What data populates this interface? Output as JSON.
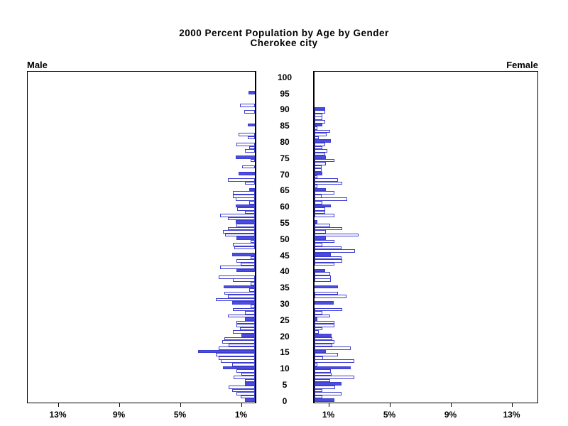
{
  "title": {
    "line1": "2000 Percent Population by Age by Gender",
    "line2": "Cherokee city"
  },
  "panels": {
    "left_label": "Male",
    "right_label": "Female"
  },
  "colors": {
    "bar_fill": "#4b4ce0",
    "bar_outline": "#3d3ecf",
    "bar_empty_fill": "#ffffff",
    "axis": "#000000",
    "background": "#ffffff"
  },
  "chart_data": {
    "type": "bar",
    "variant": "population-pyramid",
    "title": "2000 Percent Population by Age by Gender",
    "subtitle": "Cherokee city",
    "xlabel_unit": "%",
    "age_min": 0,
    "age_max": 100,
    "age_tick_step": 5,
    "age_tick_labels": [
      "0",
      "5",
      "10",
      "15",
      "20",
      "25",
      "30",
      "35",
      "40",
      "45",
      "50",
      "55",
      "60",
      "65",
      "70",
      "75",
      "80",
      "85",
      "90",
      "95",
      "100"
    ],
    "x_tick_values": [
      1,
      5,
      9,
      13
    ],
    "x_tick_labels_male": [
      "13%",
      "9%",
      "5%",
      "1%"
    ],
    "x_tick_labels_female": [
      "1%",
      "5%",
      "9%",
      "13%"
    ],
    "xlim": [
      0,
      15
    ],
    "highlight_every": 5,
    "grid": false,
    "series": [
      {
        "name": "Male",
        "values": [
          0.65,
          0.95,
          1.2,
          1.5,
          1.7,
          0.65,
          0.65,
          1.4,
          0.9,
          1.2,
          2.1,
          1.5,
          2.25,
          2.35,
          2.55,
          3.7,
          2.35,
          1.7,
          2.15,
          2.0,
          0.9,
          1.45,
          1.0,
          1.2,
          1.2,
          0.65,
          1.77,
          0.65,
          1.45,
          0.3,
          1.5,
          2.55,
          1.75,
          2.0,
          0.35,
          2.05,
          0.3,
          1.45,
          2.35,
          0,
          1.2,
          2.3,
          0.95,
          1.2,
          0.3,
          1.5,
          0,
          1.35,
          1.45,
          0.3,
          1.2,
          1.95,
          2.1,
          1.75,
          1.2,
          1.25,
          1.75,
          2.3,
          0.65,
          1.15,
          1.25,
          0.35,
          1.25,
          1.45,
          1.45,
          0.35,
          0,
          0.65,
          1.75,
          0,
          1.05,
          0,
          0.85,
          0,
          0.3,
          1.25,
          0,
          0.65,
          0.35,
          1.2,
          0,
          0.45,
          1.05,
          0,
          0,
          0.45,
          0,
          0,
          0,
          0.7,
          0,
          1.0,
          0,
          0,
          0,
          0.4,
          0,
          0,
          0,
          0,
          0
        ]
      },
      {
        "name": "Female",
        "values": [
          1.3,
          0.5,
          1.75,
          0.5,
          1.35,
          1.75,
          1.0,
          2.6,
          1.1,
          1.05,
          2.35,
          0.2,
          2.6,
          0.55,
          1.55,
          0.75,
          2.35,
          1.15,
          1.3,
          1.15,
          1.1,
          0.3,
          0.5,
          1.3,
          1.3,
          0.2,
          1.0,
          0.5,
          1.8,
          0,
          1.25,
          0,
          2.1,
          1.55,
          0,
          1.55,
          0,
          1.05,
          1.05,
          1.0,
          0.7,
          0,
          1.3,
          1.8,
          1.75,
          1.05,
          2.65,
          1.75,
          0.5,
          1.3,
          0.75,
          2.9,
          0.75,
          1.8,
          1.0,
          0.2,
          0,
          1.3,
          0.7,
          0.7,
          1.05,
          0.5,
          2.15,
          0.45,
          1.3,
          0.75,
          0.2,
          1.8,
          1.55,
          0.2,
          0.5,
          0.45,
          0.45,
          0.75,
          1.3,
          0.75,
          0.7,
          0.85,
          0.5,
          0.7,
          1.05,
          0.3,
          0.8,
          1.0,
          0.2,
          0.5,
          0.7,
          0.5,
          0.5,
          0.7,
          0.7,
          0,
          0,
          0,
          0,
          0,
          0,
          0,
          0,
          0,
          0
        ]
      }
    ]
  }
}
